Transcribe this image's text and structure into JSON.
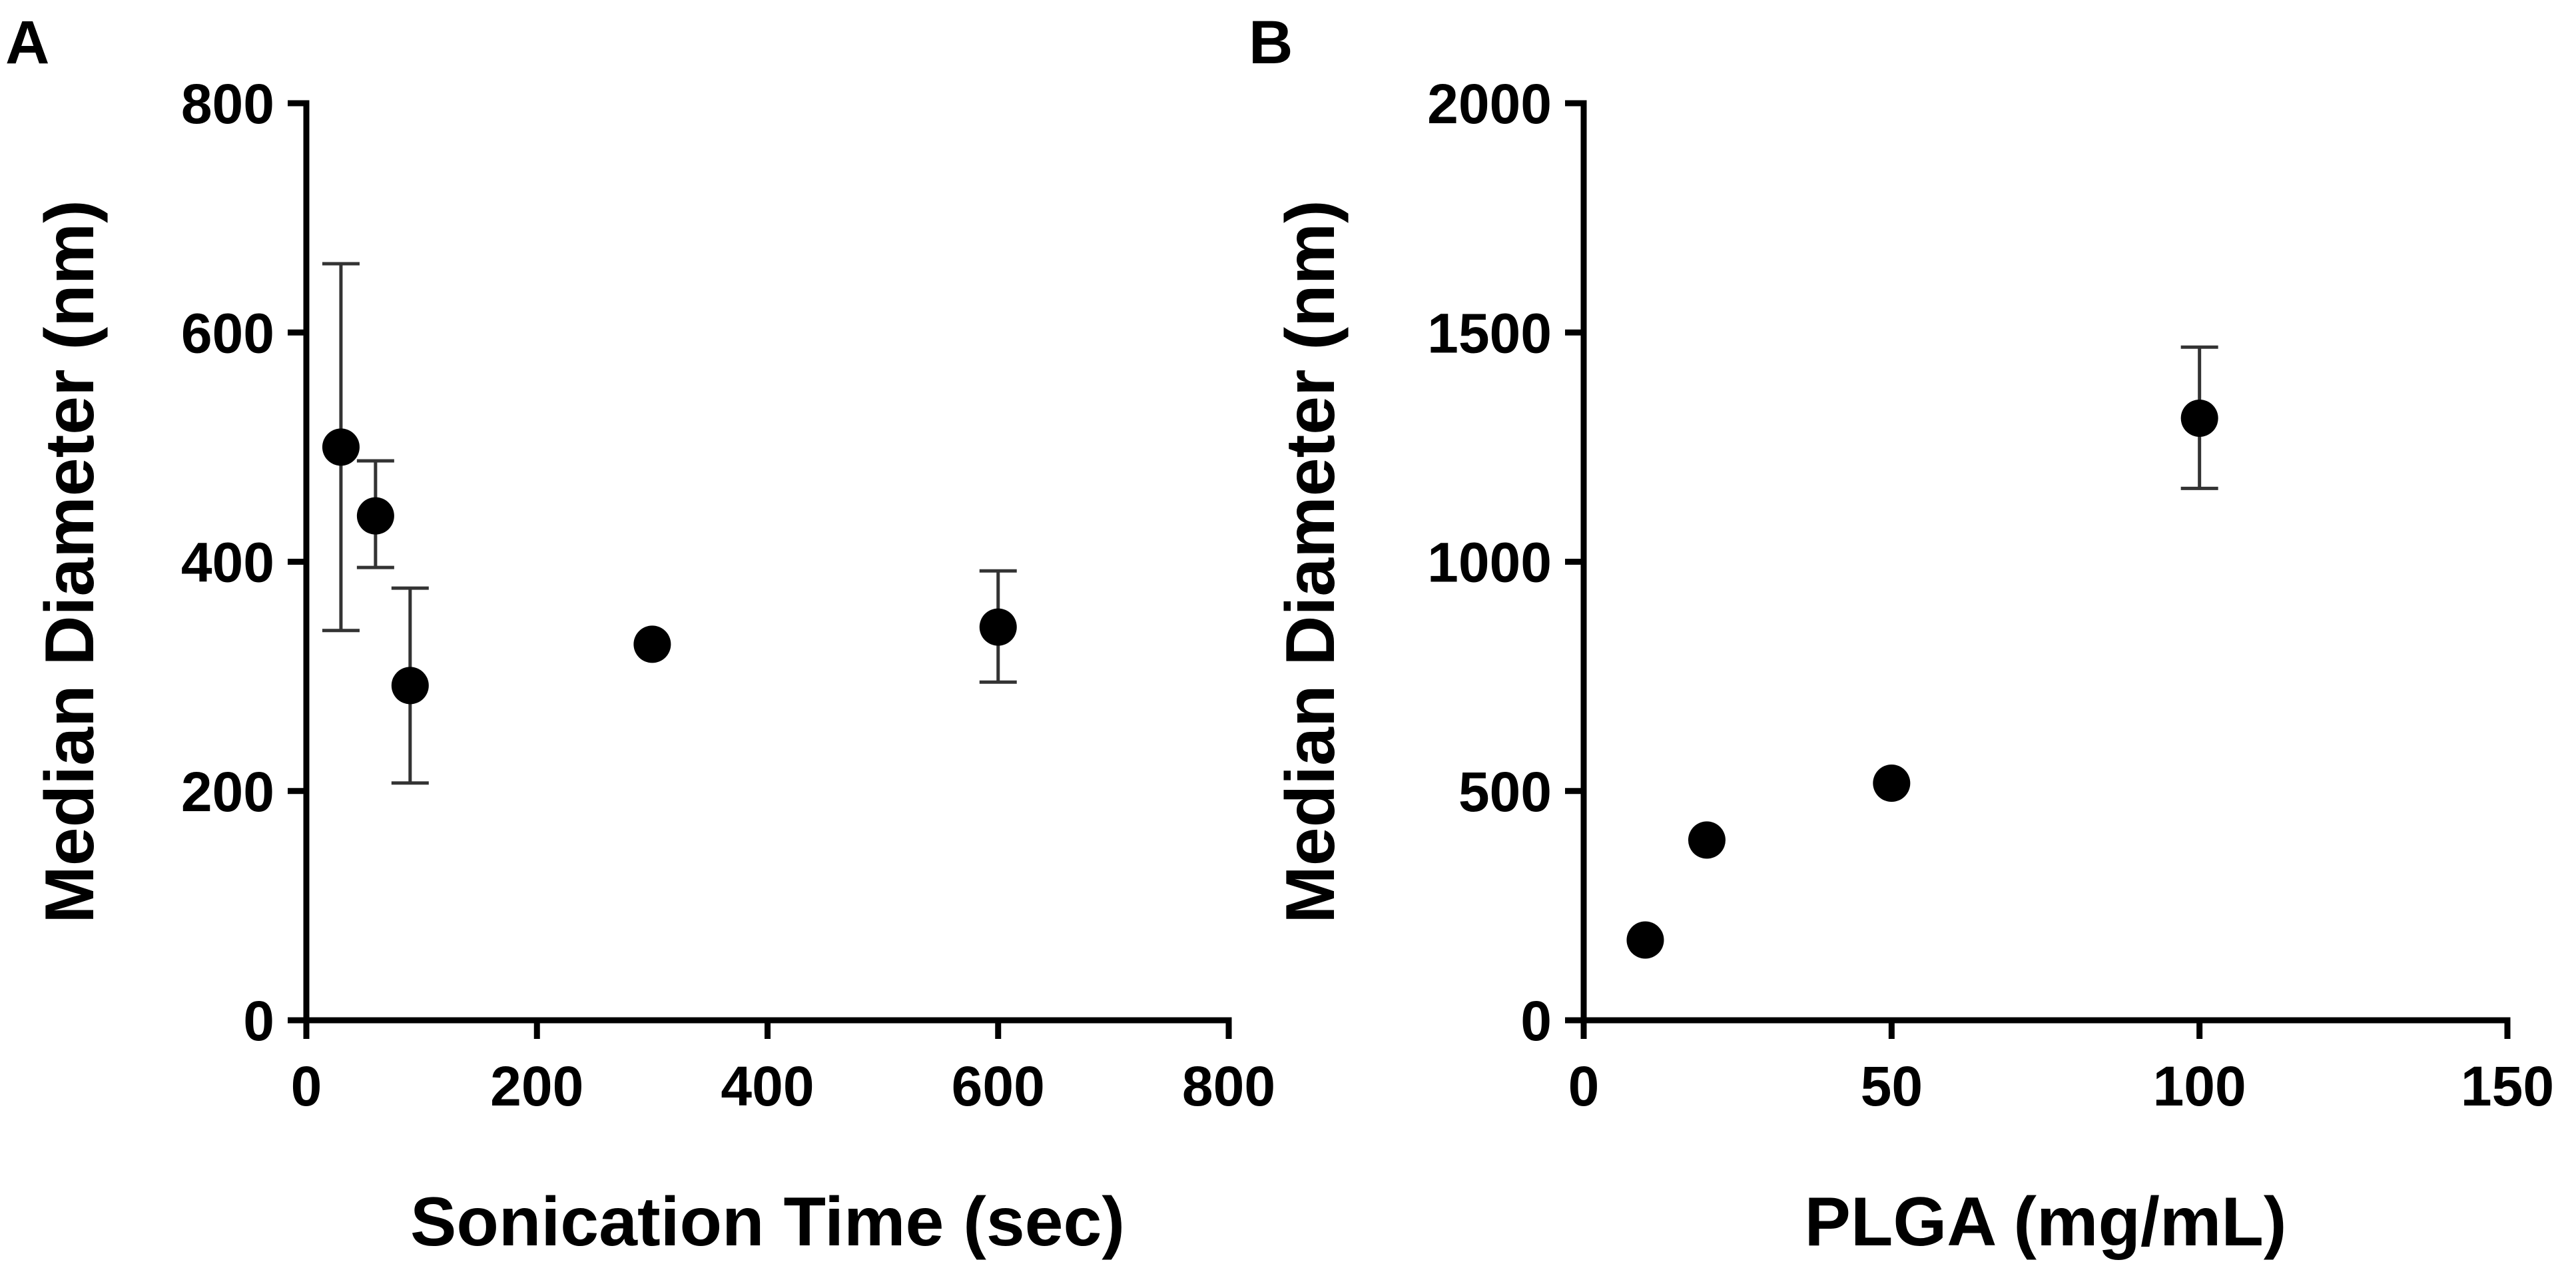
{
  "chart_data": [
    {
      "type": "scatter",
      "panel_label": "A",
      "title": "",
      "xlabel": "Sonication  Time (sec)",
      "ylabel": "Median Diameter (nm)",
      "xlim": [
        0,
        800
      ],
      "ylim": [
        0,
        800
      ],
      "xticks": [
        "0",
        "200",
        "400",
        "600",
        "800"
      ],
      "yticks": [
        "0",
        "200",
        "400",
        "600",
        "800"
      ],
      "points": [
        {
          "x": 30,
          "y": 500,
          "err_low": 340,
          "err_high": 660
        },
        {
          "x": 60,
          "y": 440,
          "err_low": 395,
          "err_high": 488
        },
        {
          "x": 90,
          "y": 292,
          "err_low": 207,
          "err_high": 377
        },
        {
          "x": 300,
          "y": 328,
          "err_low": null,
          "err_high": null
        },
        {
          "x": 600,
          "y": 343,
          "err_low": 295,
          "err_high": 392
        }
      ]
    },
    {
      "type": "scatter",
      "panel_label": "B",
      "title": "",
      "xlabel": "PLGA  (mg/mL)",
      "ylabel": "Median Diameter (nm)",
      "xlim": [
        0,
        150
      ],
      "ylim": [
        0,
        2000
      ],
      "xticks": [
        "0",
        "50",
        "100",
        "150"
      ],
      "yticks": [
        "0",
        "500",
        "1000",
        "1500",
        "2000"
      ],
      "points": [
        {
          "x": 10,
          "y": 175,
          "err_low": null,
          "err_high": null
        },
        {
          "x": 20,
          "y": 393,
          "err_low": null,
          "err_high": null
        },
        {
          "x": 50,
          "y": 517,
          "err_low": null,
          "err_high": null
        },
        {
          "x": 100,
          "y": 1313,
          "err_low": 1160,
          "err_high": 1468
        }
      ]
    }
  ],
  "colors": {
    "marker": "#000000",
    "axis": "#000000",
    "error_bar": "#333333"
  }
}
